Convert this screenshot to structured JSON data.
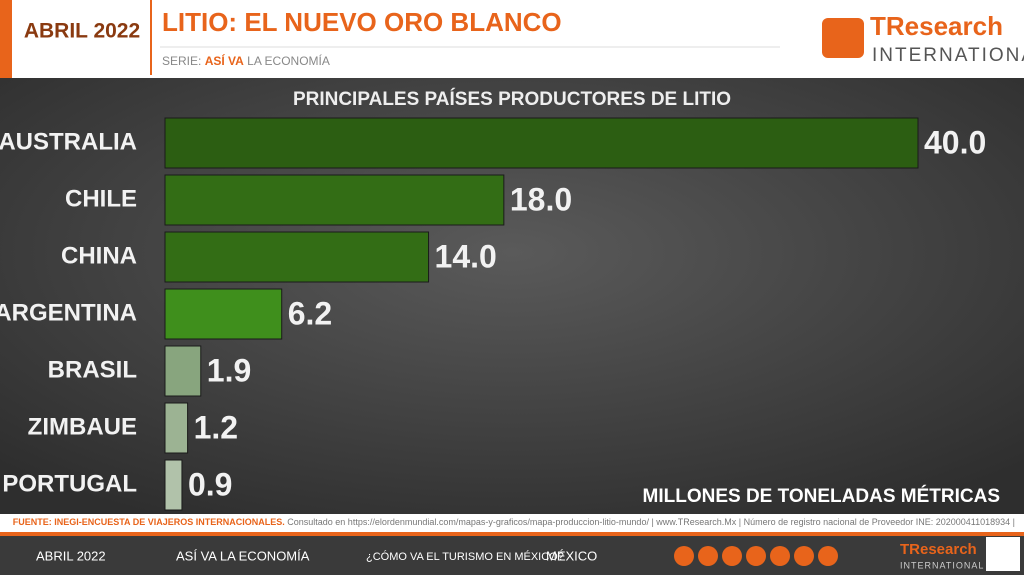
{
  "header": {
    "date": "ABRIL 2022",
    "title": "LITIO: EL NUEVO ORO BLANCO",
    "series_prefix": "SERIE:",
    "series_name": "ASÍ VA",
    "series_rest": "LA ECONOMÍA",
    "logo_main": "TResearch",
    "logo_sub": "INTERNATIONAL"
  },
  "chart_data": {
    "type": "hbar",
    "title": "PRINCIPALES PAÍSES PRODUCTORES DE LITIO",
    "unit_label": "MILLONES DE TONELADAS MÉTRICAS",
    "categories": [
      "AUSTRALIA",
      "CHILE",
      "CHINA",
      "ARGENTINA",
      "BRASIL",
      "ZIMBAUE",
      "PORTUGAL"
    ],
    "values": [
      40.0,
      18.0,
      14.0,
      6.2,
      1.9,
      1.2,
      0.9
    ],
    "value_labels": [
      "40.0",
      "18.0",
      "14.0",
      "6.2",
      "1.9",
      "1.2",
      "0.9"
    ],
    "colors": [
      "#2c5e12",
      "#336d15",
      "#336d15",
      "#3f8f1c",
      "#88a57e",
      "#9cb393",
      "#b1c2aa"
    ],
    "xlim": [
      0,
      40
    ]
  },
  "source": {
    "label": "FUENTE: INEGI-ENCUESTA DE VIAJEROS INTERNACIONALES.",
    "text": "Consultado en https://elordenmundial.com/mapas-y-graficos/mapa-produccion-litio-mundo/ | www.TResearch.Mx | Número de registro nacional de Proveedor INE: 202000411018934 |"
  },
  "footer": {
    "items": [
      "ABRIL 2022",
      "ASÍ VA LA ECONOMÍA",
      "¿CÓMO VA EL TURISMO EN MÉXICO?",
      "MÉXICO"
    ],
    "logo_main": "TResearch",
    "logo_sub": "INTERNATIONAL"
  }
}
